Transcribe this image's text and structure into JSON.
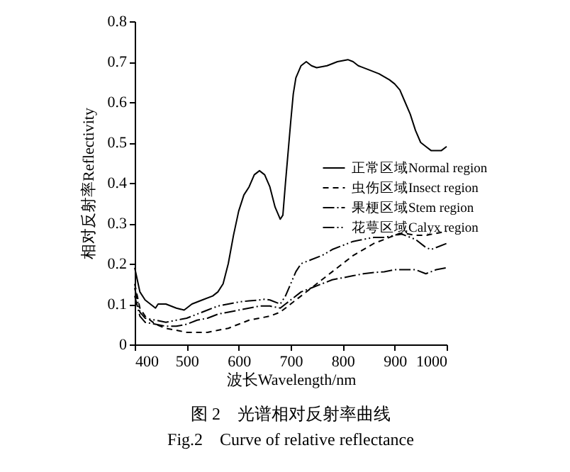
{
  "chart_data": {
    "type": "line",
    "title": "图 2　光谱相对反射率曲线",
    "subtitle": "Fig.2　Curve of relative reflectance",
    "xlabel": "波长Wavelength/nm",
    "ylabel": "相对反射率Reflectivity",
    "xlim": [
      400,
      1000
    ],
    "xticks": [
      400,
      500,
      600,
      700,
      800,
      900,
      1000
    ],
    "ylim": [
      0,
      0.8
    ],
    "yticks": [
      0,
      0.1,
      0.2,
      0.3,
      0.4,
      0.5,
      0.6,
      0.7,
      0.8
    ],
    "grid": false,
    "legend": "right",
    "marker": "none",
    "series": [
      {
        "name": "正常区域Normal region",
        "color": "#000000",
        "line_style": "solid",
        "x": [
          400,
          405,
          410,
          420,
          430,
          440,
          445,
          460,
          480,
          495,
          500,
          510,
          530,
          550,
          560,
          570,
          580,
          590,
          600,
          610,
          620,
          630,
          640,
          650,
          660,
          670,
          680,
          685,
          690,
          700,
          705,
          710,
          720,
          730,
          740,
          750,
          770,
          790,
          810,
          820,
          830,
          850,
          870,
          890,
          900,
          910,
          920,
          930,
          940,
          950,
          960,
          970,
          980,
          990,
          1000
        ],
        "values": [
          0.19,
          0.16,
          0.13,
          0.11,
          0.1,
          0.09,
          0.1,
          0.1,
          0.09,
          0.085,
          0.09,
          0.1,
          0.11,
          0.12,
          0.13,
          0.15,
          0.2,
          0.27,
          0.33,
          0.37,
          0.39,
          0.42,
          0.43,
          0.42,
          0.39,
          0.34,
          0.31,
          0.32,
          0.4,
          0.55,
          0.62,
          0.66,
          0.69,
          0.7,
          0.69,
          0.685,
          0.69,
          0.7,
          0.705,
          0.7,
          0.69,
          0.68,
          0.67,
          0.655,
          0.645,
          0.63,
          0.6,
          0.57,
          0.53,
          0.5,
          0.49,
          0.48,
          0.48,
          0.48,
          0.49
        ]
      },
      {
        "name": "虫伤区域Insect region",
        "color": "#000000",
        "line_style": "dashed",
        "x": [
          400,
          410,
          420,
          440,
          460,
          480,
          500,
          520,
          540,
          560,
          580,
          600,
          620,
          640,
          660,
          680,
          690,
          700,
          720,
          740,
          760,
          780,
          800,
          820,
          840,
          860,
          880,
          900,
          920,
          940,
          960,
          980,
          1000
        ],
        "values": [
          0.15,
          0.09,
          0.07,
          0.05,
          0.04,
          0.035,
          0.03,
          0.03,
          0.03,
          0.035,
          0.04,
          0.05,
          0.06,
          0.065,
          0.07,
          0.08,
          0.09,
          0.1,
          0.12,
          0.14,
          0.16,
          0.18,
          0.2,
          0.22,
          0.235,
          0.25,
          0.26,
          0.27,
          0.275,
          0.27,
          0.27,
          0.275,
          0.28
        ]
      },
      {
        "name": "果梗区域Stem region",
        "color": "#000000",
        "line_style": "dashdot",
        "x": [
          400,
          410,
          420,
          440,
          460,
          480,
          500,
          520,
          540,
          560,
          580,
          600,
          620,
          640,
          660,
          680,
          690,
          700,
          720,
          740,
          760,
          780,
          800,
          820,
          840,
          860,
          880,
          900,
          920,
          940,
          960,
          980,
          1000
        ],
        "values": [
          0.12,
          0.07,
          0.055,
          0.05,
          0.045,
          0.045,
          0.05,
          0.06,
          0.065,
          0.075,
          0.08,
          0.085,
          0.09,
          0.095,
          0.095,
          0.09,
          0.1,
          0.11,
          0.13,
          0.14,
          0.15,
          0.16,
          0.165,
          0.17,
          0.175,
          0.178,
          0.18,
          0.185,
          0.185,
          0.185,
          0.175,
          0.185,
          0.19
        ]
      },
      {
        "name": "花萼区域Calyx region",
        "color": "#000000",
        "line_style": "dashdotdot",
        "x": [
          400,
          410,
          420,
          440,
          460,
          480,
          500,
          520,
          540,
          560,
          580,
          600,
          620,
          640,
          650,
          660,
          680,
          690,
          700,
          710,
          720,
          740,
          760,
          780,
          800,
          820,
          840,
          860,
          880,
          900,
          910,
          920,
          940,
          960,
          970,
          980,
          1000
        ],
        "values": [
          0.14,
          0.08,
          0.065,
          0.06,
          0.055,
          0.06,
          0.065,
          0.075,
          0.085,
          0.095,
          0.1,
          0.105,
          0.108,
          0.11,
          0.112,
          0.11,
          0.1,
          0.12,
          0.15,
          0.18,
          0.2,
          0.21,
          0.22,
          0.235,
          0.245,
          0.255,
          0.26,
          0.265,
          0.265,
          0.27,
          0.275,
          0.27,
          0.26,
          0.24,
          0.235,
          0.24,
          0.25
        ]
      }
    ]
  }
}
